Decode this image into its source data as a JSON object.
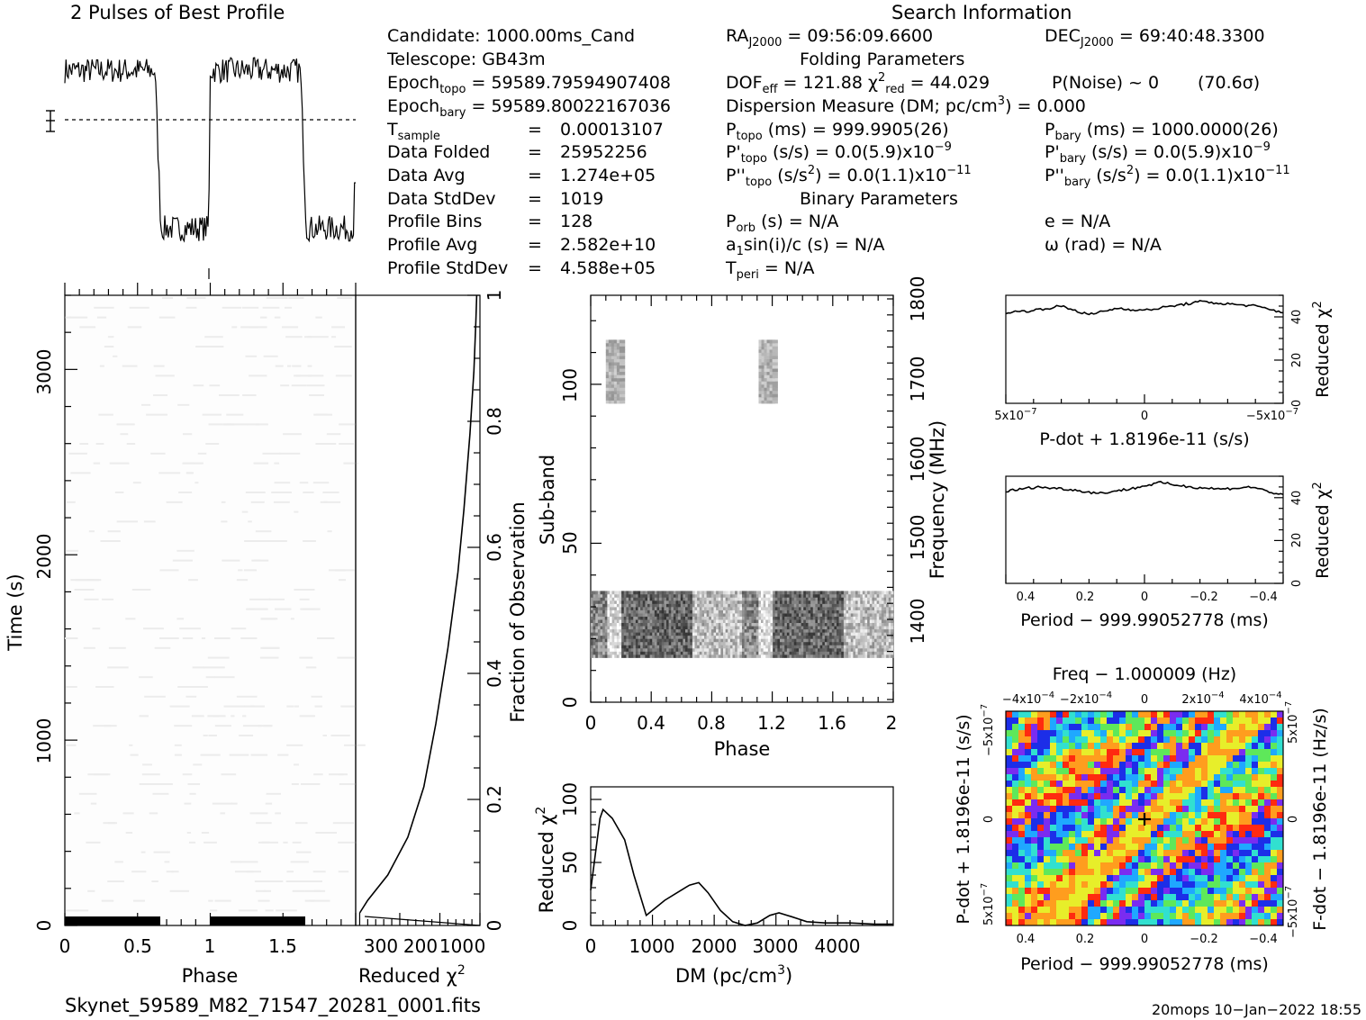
{
  "header": {
    "profile_title": "2 Pulses of Best Profile",
    "search_title": "Search Information",
    "folding_title": "Folding Parameters",
    "binary_title": "Binary Parameters"
  },
  "info": {
    "candidate": "Candidate:  1000.00ms_Cand",
    "telescope": "Telescope:   GB43m",
    "epoch_topo": "59589.79594907408",
    "epoch_bary": "59589.80022167036",
    "t_sample": "0.00013107",
    "data_folded": "25952256",
    "data_avg": "1.274e+05",
    "data_stddev": "1019",
    "profile_bins": "128",
    "profile_avg": "2.582e+10",
    "profile_stddev": "4.588e+05"
  },
  "search": {
    "ra": "09:56:09.6600",
    "dec": "69:40:48.3300",
    "dof_eff": "121.88",
    "chi2_red": "44.029",
    "p_noise": "P(Noise) ~ 0",
    "sigma": "(70.6σ)",
    "dm": "0.000",
    "p_topo": "999.9905(26)",
    "p_bary": "1000.0000(26)",
    "pd_topo": "0.0(5.9)x10",
    "pd_topo_exp": "−9",
    "pd_bary": "0.0(5.9)x10",
    "pd_bary_exp": "−9",
    "pdd_topo": "0.0(1.1)x10",
    "pdd_topo_exp": "−11",
    "pdd_bary": "0.0(1.1)x10",
    "pdd_bary_exp": "−11",
    "p_orb": "N/A",
    "a1sini": "N/A",
    "t_peri": "N/A",
    "ecc": "e = N/A",
    "omega": "ω (rad) = N/A"
  },
  "footer": {
    "filename": "Skynet_59589_M82_71547_20281_0001.fits",
    "stamp": "20mops 10−Jan−2022 18:55"
  },
  "colors": {
    "ink": "#000000",
    "heatmap": [
      "#7a2cf0",
      "#1c2ee8",
      "#1fa8ff",
      "#31e0d0",
      "#5ee85a",
      "#e7ee2a",
      "#ff9d1e",
      "#ff2a10"
    ]
  },
  "chart_data": [
    {
      "id": "profile",
      "type": "line",
      "title": "2 Pulses of Best Profile",
      "x": [
        0.0,
        0.62,
        0.66,
        0.7,
        1.0,
        1.62,
        1.66,
        1.7,
        2.0
      ],
      "y": [
        0.86,
        0.84,
        0.15,
        0.1,
        0.86,
        0.84,
        0.15,
        0.1,
        0.3
      ],
      "note_y": "relative intensity, baseline marker at 0.55"
    },
    {
      "id": "phase-time",
      "type": "heatmap",
      "xlabel": "Phase",
      "ylabel": "Time (s)",
      "xlim": [
        0,
        2
      ],
      "ylim": [
        0,
        3400
      ],
      "x_ticks": [
        "0",
        "0.5",
        "1",
        "1.5"
      ],
      "y_ticks": [
        "0",
        "1000",
        "2000",
        "3000"
      ],
      "dark_band_x": [
        [
          0.0,
          0.66
        ],
        [
          1.0,
          1.66
        ]
      ],
      "dark_band_y": [
        0,
        40
      ]
    },
    {
      "id": "fraction-chi2",
      "type": "line",
      "xlabel": "Reduced χ²",
      "ylabel": "Fraction of Observation",
      "xlim": [
        310,
        0
      ],
      "ylim": [
        0,
        1
      ],
      "x_ticks": [
        "300",
        "200",
        "100",
        "0"
      ],
      "y_ticks": [
        "0",
        "0.2",
        "0.4",
        "0.6",
        "0.8",
        "1"
      ],
      "x": [
        300,
        280,
        230,
        180,
        140,
        110,
        80,
        55,
        40,
        25,
        15,
        10,
        8
      ],
      "y": [
        0.02,
        0.04,
        0.08,
        0.14,
        0.22,
        0.32,
        0.44,
        0.56,
        0.66,
        0.78,
        0.88,
        0.96,
        1.0
      ]
    },
    {
      "id": "subband-phase",
      "type": "heatmap",
      "xlabel": "Phase",
      "ylabel": "Sub-band",
      "y2label": "Frequency (MHz)",
      "xlim": [
        0,
        2
      ],
      "ylim": [
        0,
        128
      ],
      "x_ticks": [
        "0",
        "0.4",
        "0.8",
        "1.2",
        "1.6",
        "2"
      ],
      "y_ticks": [
        "0",
        "50",
        "100"
      ],
      "y2_ticks": [
        "1400",
        "1500",
        "1600",
        "1700",
        "1800"
      ],
      "band_low": [
        14,
        35
      ],
      "band_high": [
        94,
        114
      ]
    },
    {
      "id": "dm-chi2",
      "type": "line",
      "xlabel": "DM (pc/cm³)",
      "ylabel": "Reduced χ²",
      "xlim": [
        0,
        4900
      ],
      "ylim": [
        0,
        110
      ],
      "x_ticks": [
        "0",
        "1000",
        "2000",
        "3000",
        "4000"
      ],
      "y_ticks": [
        "0",
        "50",
        "100"
      ],
      "x": [
        0,
        150,
        200,
        350,
        550,
        700,
        900,
        1050,
        1200,
        1400,
        1600,
        1750,
        1900,
        2100,
        2300,
        2500,
        2700,
        2900,
        3050,
        3250,
        3500,
        3800,
        4200,
        4600,
        4900
      ],
      "y": [
        28,
        85,
        92,
        85,
        68,
        40,
        8,
        14,
        20,
        26,
        32,
        34,
        26,
        12,
        3,
        0,
        2,
        8,
        10,
        7,
        3,
        2,
        2,
        1,
        1
      ]
    },
    {
      "id": "pdot-chi2",
      "type": "line",
      "xlabel": "P-dot + 1.8196e-11 (s/s)",
      "ylabel": "Reduced χ²",
      "xlim": [
        5e-07,
        -5e-07
      ],
      "ylim": [
        0,
        50
      ],
      "x_ticks": [
        "5x10",
        "0",
        "−5x10"
      ],
      "y_ticks": [
        "0",
        "20",
        "40"
      ],
      "x": [
        5e-07,
        4e-07,
        3e-07,
        2e-07,
        1e-07,
        0,
        -1e-07,
        -2e-07,
        -3e-07,
        -4e-07,
        -5e-07
      ],
      "y": [
        42,
        43,
        45,
        41,
        44,
        43,
        45,
        47,
        46,
        45,
        42
      ]
    },
    {
      "id": "period-chi2",
      "type": "line",
      "xlabel": "Period − 999.99052778 (ms)",
      "ylabel": "Reduced χ²",
      "xlim": [
        0.45,
        -0.45
      ],
      "ylim": [
        0,
        50
      ],
      "x_ticks": [
        "0.4",
        "0.2",
        "0",
        "−0.2",
        "−0.4"
      ],
      "y_ticks": [
        "0",
        "20",
        "40"
      ],
      "x": [
        0.45,
        0.35,
        0.25,
        0.15,
        0.05,
        -0.05,
        -0.15,
        -0.25,
        -0.35,
        -0.45
      ],
      "y": [
        43,
        45,
        44,
        42,
        44,
        47,
        45,
        44,
        45,
        41
      ]
    },
    {
      "id": "p-pdot",
      "type": "heatmap",
      "title": "Freq − 1.000009 (Hz)",
      "xlabel": "Period − 999.99052778 (ms)",
      "ylabel": "P-dot + 1.8196e-11 (s/s)",
      "y2label": "F-dot − 1.8196e-11 (Hz/s)",
      "x_ticks": [
        "0.4",
        "0.2",
        "0",
        "−0.2",
        "−0.4"
      ],
      "x2_ticks": [
        "−4x10",
        "−2x10",
        "0",
        "2x10",
        "4x10"
      ],
      "y_ticks": [
        "5x10",
        "0",
        "−5x10"
      ],
      "y2_ticks": [
        "5x10",
        "0",
        "−5x10"
      ],
      "best": [
        0,
        0
      ]
    }
  ]
}
